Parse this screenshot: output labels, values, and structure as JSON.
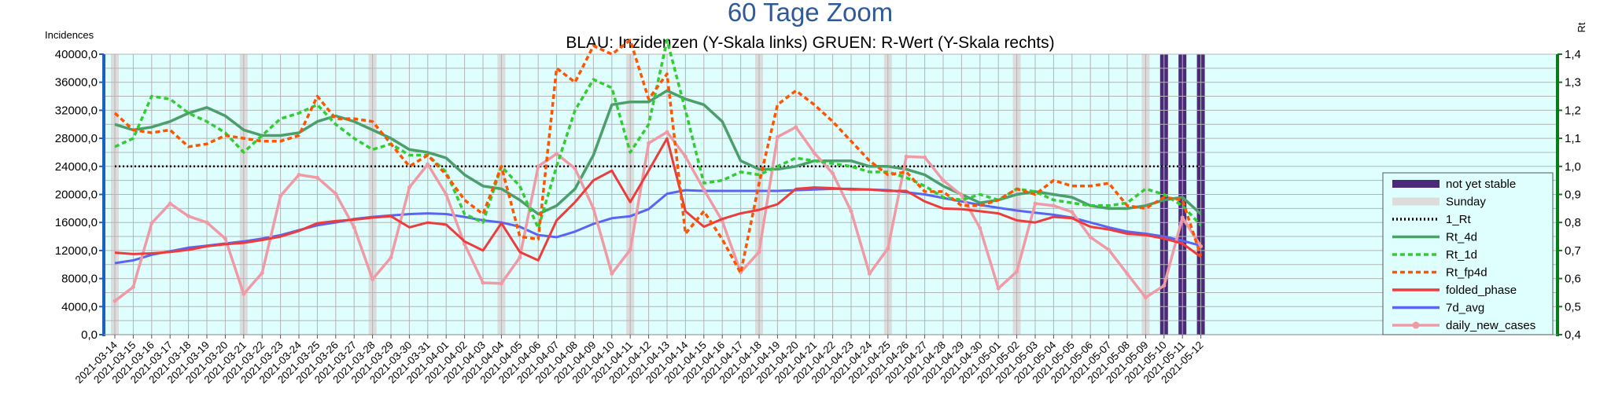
{
  "chart_data": {
    "type": "line",
    "title": "60 Tage Zoom",
    "subtitle": "BLAU: Inzidenzen (Y-Skala links)     GRUEN: R-Wert (Y-Skala rechts)",
    "ylabel_left": "Incidences",
    "ylabel_right": "Rt",
    "ylim_left": [
      0,
      40000
    ],
    "ylim_right": [
      0.4,
      1.4
    ],
    "yticks_left": [
      "0,0",
      "4000,0",
      "8000,0",
      "12000,0",
      "16000,0",
      "20000,0",
      "24000,0",
      "28000,0",
      "32000,0",
      "36000,0",
      "40000,0"
    ],
    "yticks_right": [
      "0,4",
      "0,5",
      "0,6",
      "0,7",
      "0,8",
      "0,9",
      "1,0",
      "1,1",
      "1,2",
      "1,3",
      "1,4"
    ],
    "grid": true,
    "legend_position": "right",
    "colors": {
      "background": "#dffefe",
      "grid": "#b4b4b4",
      "left_axis": "#1f5fbf",
      "right_axis": "#0b7a1a",
      "not_yet_stable": "#4b2a7a",
      "sunday": "#dcdcdc"
    },
    "x": [
      "2021-03-14",
      "2021-03-15",
      "2021-03-16",
      "2021-03-17",
      "2021-03-18",
      "2021-03-19",
      "2021-03-20",
      "2021-03-21",
      "2021-03-22",
      "2021-03-23",
      "2021-03-24",
      "2021-03-25",
      "2021-03-26",
      "2021-03-27",
      "2021-03-28",
      "2021-03-29",
      "2021-03-30",
      "2021-03-31",
      "2021-04-01",
      "2021-04-02",
      "2021-04-03",
      "2021-04-04",
      "2021-04-05",
      "2021-04-06",
      "2021-04-07",
      "2021-04-08",
      "2021-04-09",
      "2021-04-10",
      "2021-04-11",
      "2021-04-12",
      "2021-04-13",
      "2021-04-14",
      "2021-04-15",
      "2021-04-16",
      "2021-04-17",
      "2021-04-18",
      "2021-04-19",
      "2021-04-20",
      "2021-04-21",
      "2021-04-22",
      "2021-04-23",
      "2021-04-24",
      "2021-04-25",
      "2021-04-26",
      "2021-04-27",
      "2021-04-28",
      "2021-04-29",
      "2021-04-30",
      "2021-05-01",
      "2021-05-02",
      "2021-05-03",
      "2021-05-04",
      "2021-05-05",
      "2021-05-06",
      "2021-05-07",
      "2021-05-08",
      "2021-05-09",
      "2021-05-10",
      "2021-05-11",
      "2021-05-12"
    ],
    "sundays": [
      "2021-03-14",
      "2021-03-21",
      "2021-03-28",
      "2021-04-04",
      "2021-04-11",
      "2021-04-18",
      "2021-04-25",
      "2021-05-02",
      "2021-05-09"
    ],
    "not_yet_stable": [
      "2021-05-10",
      "2021-05-11",
      "2021-05-12"
    ],
    "series_left": [
      {
        "name": "folded_phase",
        "color": "#ee3b3b",
        "width": 3,
        "dash": "",
        "values": [
          11700,
          11500,
          11600,
          11800,
          12100,
          12600,
          12900,
          13100,
          13500,
          14000,
          14800,
          15900,
          16200,
          16400,
          16700,
          16900,
          15300,
          16000,
          15700,
          13300,
          12000,
          15900,
          11800,
          10600,
          16300,
          18900,
          22000,
          23400,
          18900,
          23400,
          28000,
          17600,
          15400,
          16500,
          17300,
          17800,
          18600,
          20800,
          21000,
          20900,
          20700,
          20700,
          20500,
          20500,
          19000,
          18000,
          17900,
          17600,
          17300,
          16300,
          16000,
          16800,
          16600,
          15400,
          15000,
          14400,
          14200,
          13700,
          13000,
          11100
        ]
      },
      {
        "name": "7d_avg",
        "color": "#5a64f5",
        "width": 3,
        "dash": "",
        "values": [
          10200,
          10600,
          11400,
          11900,
          12400,
          12700,
          13000,
          13300,
          13700,
          14200,
          14900,
          15600,
          16000,
          16500,
          16800,
          17000,
          17200,
          17300,
          17200,
          16800,
          16300,
          16000,
          15400,
          14200,
          13900,
          14700,
          15800,
          16600,
          16900,
          17900,
          20100,
          20600,
          20500,
          20500,
          20500,
          20500,
          20500,
          20600,
          20700,
          20800,
          20800,
          20700,
          20600,
          20300,
          20000,
          19500,
          19000,
          18500,
          18100,
          17700,
          17400,
          17100,
          16700,
          16000,
          15300,
          14700,
          14400,
          14000,
          13400,
          12700
        ]
      },
      {
        "name": "daily_new_cases",
        "color": "#f09aa6",
        "width": 3.5,
        "dash": "",
        "marker": true,
        "values": [
          4800,
          6800,
          15900,
          18700,
          16900,
          16000,
          13700,
          5800,
          8800,
          19800,
          22800,
          22400,
          20100,
          15300,
          7900,
          11000,
          21000,
          24300,
          20000,
          12900,
          7400,
          7300,
          11000,
          24000,
          25800,
          23700,
          18000,
          8700,
          12100,
          27300,
          28900,
          25400,
          20700,
          16200,
          8900,
          11800,
          28200,
          29600,
          25900,
          23000,
          17600,
          8700,
          12300,
          25400,
          25300,
          22000,
          19900,
          15200,
          6600,
          9000,
          18700,
          18400,
          17500,
          13900,
          12100,
          8700,
          5300,
          7000,
          16700,
          12600
        ]
      }
    ],
    "series_right": [
      {
        "name": "Rt_4d",
        "color": "#4c9e6a",
        "width": 3.5,
        "dash": "",
        "values": [
          1.15,
          1.13,
          1.14,
          1.16,
          1.19,
          1.21,
          1.18,
          1.13,
          1.11,
          1.11,
          1.12,
          1.16,
          1.18,
          1.16,
          1.13,
          1.1,
          1.06,
          1.05,
          1.03,
          0.97,
          0.93,
          0.92,
          0.88,
          0.83,
          0.86,
          0.92,
          1.04,
          1.22,
          1.23,
          1.23,
          1.27,
          1.24,
          1.22,
          1.16,
          1.02,
          0.99,
          0.99,
          1.0,
          1.02,
          1.02,
          1.02,
          1.0,
          1.0,
          0.99,
          0.97,
          0.93,
          0.9,
          0.87,
          0.88,
          0.9,
          0.91,
          0.9,
          0.89,
          0.86,
          0.85,
          0.85,
          0.86,
          0.88,
          0.89,
          0.83
        ]
      },
      {
        "name": "Rt_1d",
        "color": "#33cc33",
        "width": 3.5,
        "dash": "6,4",
        "values": [
          1.07,
          1.1,
          1.25,
          1.24,
          1.19,
          1.16,
          1.12,
          1.05,
          1.11,
          1.17,
          1.19,
          1.22,
          1.15,
          1.1,
          1.06,
          1.08,
          1.04,
          1.04,
          0.98,
          0.83,
          0.8,
          1.0,
          0.93,
          0.78,
          1.0,
          1.2,
          1.31,
          1.28,
          1.05,
          1.15,
          1.45,
          1.2,
          0.94,
          0.95,
          0.98,
          0.97,
          1.0,
          1.03,
          1.02,
          1.01,
          1.0,
          0.98,
          0.98,
          0.96,
          0.93,
          0.89,
          0.88,
          0.9,
          0.88,
          0.92,
          0.91,
          0.88,
          0.87,
          0.86,
          0.86,
          0.87,
          0.92,
          0.9,
          0.86,
          0.79
        ]
      },
      {
        "name": "Rt_fp4d",
        "color": "#ff5500",
        "width": 3.5,
        "dash": "6,4",
        "values": [
          1.19,
          1.13,
          1.12,
          1.13,
          1.07,
          1.08,
          1.11,
          1.1,
          1.09,
          1.09,
          1.11,
          1.25,
          1.17,
          1.17,
          1.16,
          1.08,
          1.0,
          1.04,
          0.97,
          0.88,
          0.83,
          1.0,
          0.75,
          0.74,
          1.35,
          1.3,
          1.43,
          1.4,
          1.45,
          1.24,
          1.33,
          0.76,
          0.84,
          0.74,
          0.62,
          0.94,
          1.22,
          1.27,
          1.22,
          1.16,
          1.09,
          1.02,
          0.97,
          0.98,
          0.91,
          0.91,
          0.86,
          0.86,
          0.88,
          0.92,
          0.9,
          0.95,
          0.93,
          0.93,
          0.94,
          0.86,
          0.85,
          0.89,
          0.88,
          0.68
        ]
      },
      {
        "name": "1_Rt",
        "color": "#000000",
        "width": 2.5,
        "dash": "2,3",
        "values": [
          1.0,
          1.0,
          1.0,
          1.0,
          1.0,
          1.0,
          1.0,
          1.0,
          1.0,
          1.0,
          1.0,
          1.0,
          1.0,
          1.0,
          1.0,
          1.0,
          1.0,
          1.0,
          1.0,
          1.0,
          1.0,
          1.0,
          1.0,
          1.0,
          1.0,
          1.0,
          1.0,
          1.0,
          1.0,
          1.0,
          1.0,
          1.0,
          1.0,
          1.0,
          1.0,
          1.0,
          1.0,
          1.0,
          1.0,
          1.0,
          1.0,
          1.0,
          1.0,
          1.0,
          1.0,
          1.0,
          1.0,
          1.0,
          1.0,
          1.0,
          1.0,
          1.0,
          1.0,
          1.0,
          1.0,
          1.0,
          1.0,
          1.0,
          1.0,
          1.0
        ]
      }
    ],
    "legend": [
      {
        "label": "not yet stable",
        "kind": "band",
        "color": "#4b2a7a"
      },
      {
        "label": "Sunday",
        "kind": "band",
        "color": "#dcdcdc"
      },
      {
        "label": "1_Rt",
        "kind": "line",
        "color": "#000000",
        "dash": "2,3"
      },
      {
        "label": "Rt_4d",
        "kind": "line",
        "color": "#4c9e6a",
        "dash": ""
      },
      {
        "label": "Rt_1d",
        "kind": "line",
        "color": "#33cc33",
        "dash": "6,4"
      },
      {
        "label": "Rt_fp4d",
        "kind": "line",
        "color": "#ff5500",
        "dash": "6,4"
      },
      {
        "label": "folded_phase",
        "kind": "line",
        "color": "#ee3b3b",
        "dash": ""
      },
      {
        "label": "7d_avg",
        "kind": "line",
        "color": "#5a64f5",
        "dash": ""
      },
      {
        "label": "daily_new_cases",
        "kind": "marker",
        "color": "#f09aa6",
        "dash": ""
      }
    ]
  }
}
